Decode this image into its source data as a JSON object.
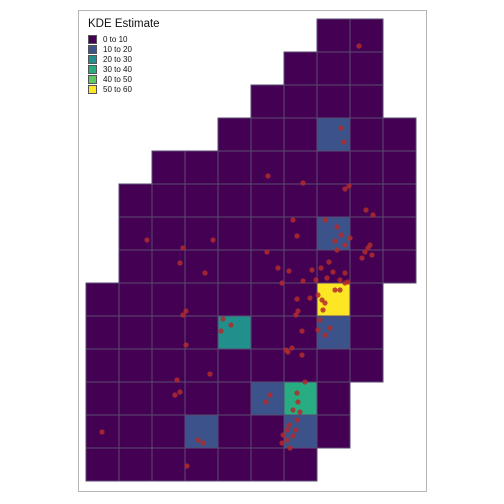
{
  "legend": {
    "title": "KDE Estimate",
    "items": [
      {
        "label": "0 to 10",
        "color": "#440154"
      },
      {
        "label": "10 to 20",
        "color": "#3b528b"
      },
      {
        "label": "20 to 30",
        "color": "#21908c"
      },
      {
        "label": "30 to 40",
        "color": "#27ad81"
      },
      {
        "label": "40 to 50",
        "color": "#5dc963"
      },
      {
        "label": "50 to 60",
        "color": "#fde725"
      }
    ]
  },
  "map": {
    "cell_border_color": "#5a4a70",
    "point_color": "#b22b2b",
    "rows": [
      {
        "row": 0,
        "cols": [
          7,
          8
        ],
        "hi": {}
      },
      {
        "row": 1,
        "cols": [
          6,
          7,
          8
        ],
        "hi": {}
      },
      {
        "row": 2,
        "cols": [
          5,
          6,
          7,
          8
        ],
        "hi": {}
      },
      {
        "row": 3,
        "cols": [
          4,
          5,
          6,
          7,
          8,
          9
        ],
        "hi": {
          "7": 1
        }
      },
      {
        "row": 4,
        "cols": [
          2,
          3,
          4,
          5,
          6,
          7,
          8,
          9
        ],
        "hi": {}
      },
      {
        "row": 5,
        "cols": [
          1,
          2,
          3,
          4,
          5,
          6,
          7,
          8,
          9
        ],
        "hi": {}
      },
      {
        "row": 6,
        "cols": [
          1,
          2,
          3,
          4,
          5,
          6,
          7,
          8,
          9
        ],
        "hi": {
          "7": 1
        }
      },
      {
        "row": 7,
        "cols": [
          1,
          2,
          3,
          4,
          5,
          6,
          7,
          8,
          9
        ],
        "hi": {}
      },
      {
        "row": 8,
        "cols": [
          0,
          1,
          2,
          3,
          4,
          5,
          6,
          7,
          8
        ],
        "hi": {
          "7": 5
        }
      },
      {
        "row": 9,
        "cols": [
          0,
          1,
          2,
          3,
          4,
          5,
          6,
          7,
          8
        ],
        "hi": {
          "4": 2,
          "7": 1
        }
      },
      {
        "row": 10,
        "cols": [
          0,
          1,
          2,
          3,
          4,
          5,
          6,
          7,
          8
        ],
        "hi": {}
      },
      {
        "row": 11,
        "cols": [
          0,
          1,
          2,
          3,
          4,
          5,
          6,
          7
        ],
        "hi": {
          "5": 1,
          "6": 3
        }
      },
      {
        "row": 12,
        "cols": [
          0,
          1,
          2,
          3,
          4,
          5,
          6,
          7
        ],
        "hi": {
          "3": 1,
          "6": 1
        }
      },
      {
        "row": 13,
        "cols": [
          0,
          1,
          2,
          3,
          4,
          5,
          6
        ],
        "hi": {}
      }
    ],
    "points": [
      [
        359,
        46
      ],
      [
        341,
        128
      ],
      [
        344,
        142
      ],
      [
        268,
        176
      ],
      [
        303,
        183
      ],
      [
        345,
        189
      ],
      [
        349,
        186
      ],
      [
        147,
        240
      ],
      [
        213,
        240
      ],
      [
        183,
        248
      ],
      [
        180,
        263
      ],
      [
        205,
        273
      ],
      [
        267,
        252
      ],
      [
        293,
        220
      ],
      [
        297,
        236
      ],
      [
        325,
        220
      ],
      [
        337,
        227
      ],
      [
        335,
        241
      ],
      [
        341,
        235
      ],
      [
        345,
        245
      ],
      [
        350,
        238
      ],
      [
        337,
        250
      ],
      [
        368,
        248
      ],
      [
        372,
        255
      ],
      [
        362,
        258
      ],
      [
        365,
        252
      ],
      [
        370,
        245
      ],
      [
        373,
        215
      ],
      [
        366,
        210
      ],
      [
        329,
        262
      ],
      [
        333,
        272
      ],
      [
        327,
        278
      ],
      [
        321,
        268
      ],
      [
        316,
        280
      ],
      [
        312,
        270
      ],
      [
        303,
        281
      ],
      [
        289,
        271
      ],
      [
        282,
        283
      ],
      [
        278,
        268
      ],
      [
        340,
        280
      ],
      [
        345,
        273
      ],
      [
        348,
        282
      ],
      [
        318,
        295
      ],
      [
        325,
        303
      ],
      [
        323,
        310
      ],
      [
        320,
        320
      ],
      [
        318,
        330
      ],
      [
        325,
        335
      ],
      [
        330,
        328
      ],
      [
        322,
        300
      ],
      [
        340,
        290
      ],
      [
        345,
        283
      ],
      [
        335,
        290
      ],
      [
        310,
        298
      ],
      [
        296,
        315
      ],
      [
        302,
        331
      ],
      [
        298,
        311
      ],
      [
        297,
        299
      ],
      [
        186,
        311
      ],
      [
        183,
        315
      ],
      [
        223,
        319
      ],
      [
        231,
        325
      ],
      [
        221,
        331
      ],
      [
        186,
        345
      ],
      [
        286,
        350
      ],
      [
        292,
        348
      ],
      [
        288,
        352
      ],
      [
        302,
        355
      ],
      [
        305,
        382
      ],
      [
        297,
        393
      ],
      [
        298,
        402
      ],
      [
        300,
        412
      ],
      [
        293,
        410
      ],
      [
        297,
        420
      ],
      [
        287,
        430
      ],
      [
        293,
        436
      ],
      [
        287,
        440
      ],
      [
        283,
        435
      ],
      [
        289,
        425
      ],
      [
        282,
        443
      ],
      [
        290,
        448
      ],
      [
        296,
        430
      ],
      [
        270,
        395
      ],
      [
        266,
        402
      ],
      [
        177,
        380
      ],
      [
        175,
        395
      ],
      [
        180,
        392
      ],
      [
        210,
        374
      ],
      [
        198,
        440
      ],
      [
        203,
        443
      ],
      [
        102,
        432
      ],
      [
        187,
        466
      ]
    ]
  }
}
